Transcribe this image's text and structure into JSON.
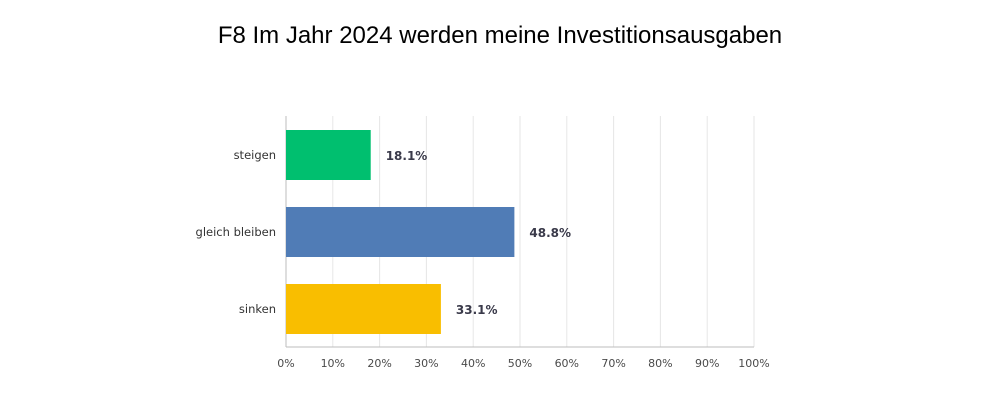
{
  "chart_data": {
    "type": "bar",
    "orientation": "horizontal",
    "title": "F8 Im Jahr 2024 werden meine Investitionsausgaben",
    "categories": [
      "steigen",
      "gleich bleiben",
      "sinken"
    ],
    "values": [
      18.1,
      48.8,
      33.1
    ],
    "value_labels": [
      "18.1%",
      "48.8%",
      "33.1%"
    ],
    "colors": [
      "#00bf6f",
      "#507cb6",
      "#f9be00"
    ],
    "xlim": [
      0,
      100
    ],
    "x_ticks": [
      "0%",
      "10%",
      "20%",
      "30%",
      "40%",
      "50%",
      "60%",
      "70%",
      "80%",
      "90%",
      "100%"
    ],
    "grid": true,
    "legend": "none"
  }
}
